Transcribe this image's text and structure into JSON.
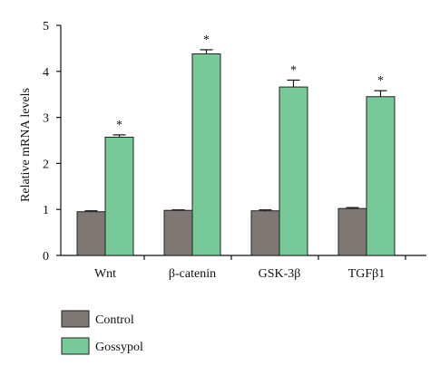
{
  "chart_data": {
    "type": "bar",
    "ylabel": "Relative mRNA levels",
    "xlabel": "",
    "ylim": [
      0,
      5
    ],
    "yticks": [
      0,
      1,
      2,
      3,
      4,
      5
    ],
    "categories": [
      "Wnt",
      "β-catenin",
      "GSK-3β",
      "TGFβ1"
    ],
    "series": [
      {
        "name": "Control",
        "color": "#7f7773",
        "values": [
          0.95,
          0.98,
          0.97,
          1.02
        ],
        "errors": [
          0.02,
          0.01,
          0.02,
          0.02
        ]
      },
      {
        "name": "Gossypol",
        "color": "#78c99a",
        "values": [
          2.57,
          4.38,
          3.66,
          3.45
        ],
        "errors": [
          0.05,
          0.09,
          0.15,
          0.13
        ]
      }
    ],
    "annotations": [
      "*",
      "*",
      "*",
      "*"
    ],
    "legend": "bottom-left",
    "grid": false
  }
}
